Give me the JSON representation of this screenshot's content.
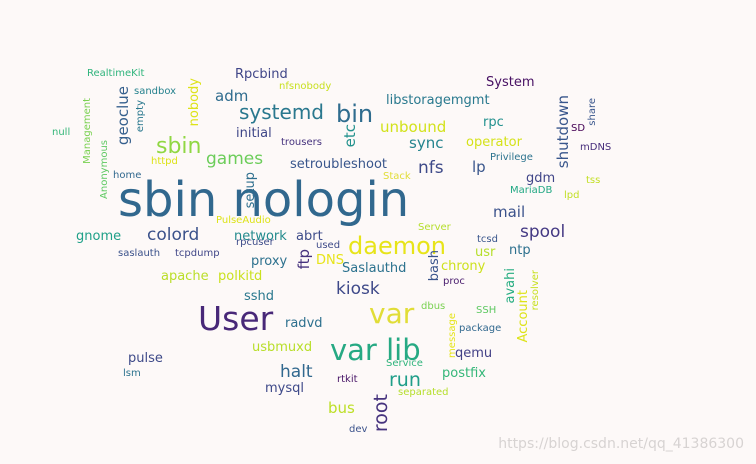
{
  "words": [
    {
      "text": "sbin nologin",
      "color": "#31688e"
    },
    {
      "text": "User",
      "color": "#482878"
    },
    {
      "text": "var lib",
      "color": "#26a983"
    },
    {
      "text": "daemon",
      "color": "#e7e419"
    },
    {
      "text": "var",
      "color": "#e1dd37"
    },
    {
      "text": "bin",
      "color": "#2f6c8e"
    },
    {
      "text": "sbin",
      "color": "#90d743"
    },
    {
      "text": "systemd",
      "color": "#2a788e"
    },
    {
      "text": "kiosk",
      "color": "#3e4989"
    },
    {
      "text": "games",
      "color": "#6ccd5a"
    },
    {
      "text": "colord",
      "color": "#3b528b"
    },
    {
      "text": "spool",
      "color": "#443983"
    },
    {
      "text": "run",
      "color": "#1f9e89"
    },
    {
      "text": "halt",
      "color": "#31688e"
    },
    {
      "text": "bus",
      "color": "#bddf26"
    },
    {
      "text": "root",
      "color": "#46337e"
    },
    {
      "text": "mail",
      "color": "#3b528b"
    },
    {
      "text": "nfs",
      "color": "#3e4a89"
    },
    {
      "text": "sync",
      "color": "#25848e"
    },
    {
      "text": "unbound",
      "color": "#d2e21b"
    },
    {
      "text": "adm",
      "color": "#2f6c8e"
    },
    {
      "text": "geoclue",
      "color": "#355f8d"
    },
    {
      "text": "shutdown",
      "color": "#39568c"
    },
    {
      "text": "libstoragemgmt",
      "color": "#29798e"
    },
    {
      "text": "System",
      "color": "#471063"
    },
    {
      "text": "Rpcbind",
      "color": "#404688"
    },
    {
      "text": "initial",
      "color": "#3f4788"
    },
    {
      "text": "setroubleshoot",
      "color": "#39568c"
    },
    {
      "text": "etc",
      "color": "#21918c"
    },
    {
      "text": "nobody",
      "color": "#dde318"
    },
    {
      "text": "gdm",
      "color": "#404588"
    },
    {
      "text": "rpc",
      "color": "#21908d"
    },
    {
      "text": "operator",
      "color": "#d5e21a"
    },
    {
      "text": "lp",
      "color": "#39568c"
    },
    {
      "text": "setup",
      "color": "#2e6f8e"
    },
    {
      "text": "network",
      "color": "#238a8d"
    },
    {
      "text": "abrt",
      "color": "#3e4c8a"
    },
    {
      "text": "ftp",
      "color": "#46327e"
    },
    {
      "text": "proxy",
      "color": "#2d718e"
    },
    {
      "text": "DNS",
      "color": "#e7e419"
    },
    {
      "text": "Saslauthd",
      "color": "#2c728e"
    },
    {
      "text": "bash",
      "color": "#3a548c"
    },
    {
      "text": "chrony",
      "color": "#cde11d"
    },
    {
      "text": "usr",
      "color": "#b5de2b"
    },
    {
      "text": "ntp",
      "color": "#2d708e"
    },
    {
      "text": "avahi",
      "color": "#26ad81"
    },
    {
      "text": "Account",
      "color": "#dde318"
    },
    {
      "text": "gnome",
      "color": "#1fa088"
    },
    {
      "text": "apache",
      "color": "#bade28"
    },
    {
      "text": "polkitd",
      "color": "#cae11f"
    },
    {
      "text": "sshd",
      "color": "#2a788e"
    },
    {
      "text": "radvd",
      "color": "#2d708e"
    },
    {
      "text": "usbmuxd",
      "color": "#b8de29"
    },
    {
      "text": "qemu",
      "color": "#424086"
    },
    {
      "text": "postfix",
      "color": "#35b779"
    },
    {
      "text": "mysql",
      "color": "#3e4989"
    },
    {
      "text": "pulse",
      "color": "#3e4a89"
    },
    {
      "text": "tss",
      "color": "#c2df23"
    },
    {
      "text": "lpd",
      "color": "#c2df23"
    },
    {
      "text": "mDNS",
      "color": "#472d7b"
    },
    {
      "text": "share",
      "color": "#39568c"
    },
    {
      "text": "SD",
      "color": "#440154"
    },
    {
      "text": "Privilege",
      "color": "#2c738e"
    },
    {
      "text": "MariaDB",
      "color": "#22a884"
    },
    {
      "text": "Stack",
      "color": "#e1dd37"
    },
    {
      "text": "Server",
      "color": "#b5de2b"
    },
    {
      "text": "tcsd",
      "color": "#39568c"
    },
    {
      "text": "proc",
      "color": "#481b6d"
    },
    {
      "text": "SSH",
      "color": "#5ec962"
    },
    {
      "text": "package",
      "color": "#31688e"
    },
    {
      "text": "resolver",
      "color": "#c8e020"
    },
    {
      "text": "message",
      "color": "#e5e419"
    },
    {
      "text": "dbus",
      "color": "#7ad151"
    },
    {
      "text": "Service",
      "color": "#2fb47c"
    },
    {
      "text": "separated",
      "color": "#b5de2b"
    },
    {
      "text": "rtkit",
      "color": "#481567"
    },
    {
      "text": "dev",
      "color": "#3b528b"
    },
    {
      "text": "tcpdump",
      "color": "#404688"
    },
    {
      "text": "saslauth",
      "color": "#3b528b"
    },
    {
      "text": "rpcuser",
      "color": "#3e4c8a"
    },
    {
      "text": "used",
      "color": "#3e4a89"
    },
    {
      "text": "PulseAudio",
      "color": "#dde318"
    },
    {
      "text": "trousers",
      "color": "#46337e"
    },
    {
      "text": "httpd",
      "color": "#dde318"
    },
    {
      "text": "home",
      "color": "#31688e"
    },
    {
      "text": "sandbox",
      "color": "#26828e"
    },
    {
      "text": "empty",
      "color": "#2a788e"
    },
    {
      "text": "null",
      "color": "#34b679"
    },
    {
      "text": "Management",
      "color": "#7ad151"
    },
    {
      "text": "Anonymous",
      "color": "#5ec962"
    },
    {
      "text": "RealtimeKit",
      "color": "#2fb47c"
    },
    {
      "text": "nfsnobody",
      "color": "#c8e020"
    },
    {
      "text": "lsm",
      "color": "#2c738e"
    }
  ],
  "watermark": "https://blog.csdn.net/qq_41386300"
}
